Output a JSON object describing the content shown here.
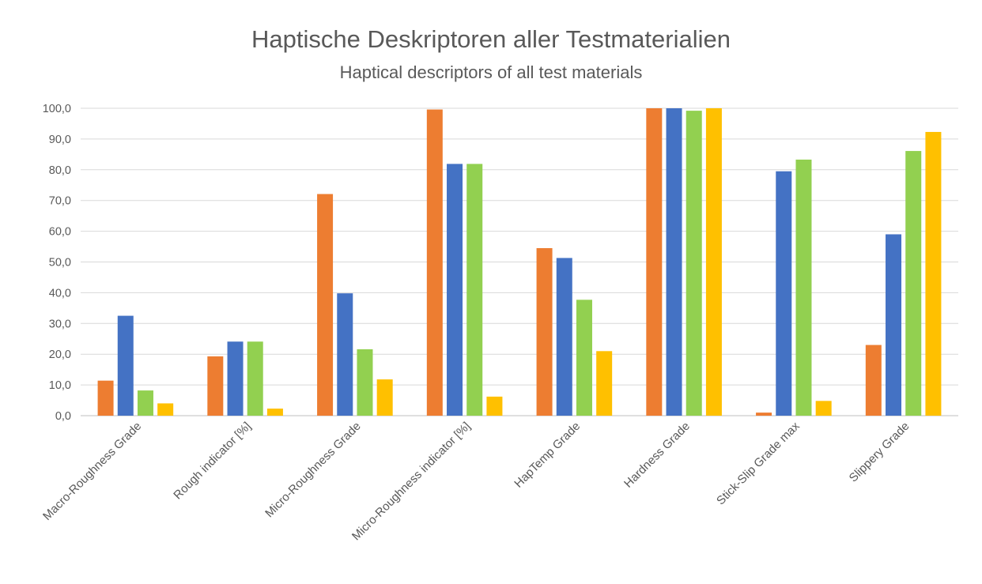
{
  "chart_data": {
    "type": "bar",
    "title": "Haptische Deskriptoren aller Testmaterialien",
    "subtitle": "Haptical descriptors of  all test materials",
    "xlabel": "",
    "ylabel": "",
    "ylim": [
      0,
      100
    ],
    "yticks": [
      "0,0",
      "10,0",
      "20,0",
      "30,0",
      "40,0",
      "50,0",
      "60,0",
      "70,0",
      "80,0",
      "90,0",
      "100,0"
    ],
    "grid": true,
    "legend": "none",
    "categories": [
      "Macro-Roughness Grade",
      "Rough  indicator [%]",
      "Micro-Roughness Grade",
      "Micro-Roughness  indicator [%]",
      "HapTemp Grade",
      "Hardness Grade",
      "Stick-Slip Grade max",
      "Slippery Grade"
    ],
    "series": [
      {
        "color": "#ED7D31",
        "values": [
          11.4,
          19.3,
          72.1,
          99.6,
          54.5,
          100.0,
          1.0,
          23.0
        ]
      },
      {
        "color": "#4472C4",
        "values": [
          32.5,
          24.1,
          39.8,
          81.9,
          51.3,
          100.0,
          79.5,
          59.0
        ]
      },
      {
        "color": "#92D050",
        "values": [
          8.2,
          24.1,
          21.6,
          81.9,
          37.7,
          99.2,
          83.3,
          86.1
        ]
      },
      {
        "color": "#FFC000",
        "values": [
          4.0,
          2.3,
          11.8,
          6.2,
          21.0,
          100.0,
          4.8,
          92.3
        ]
      }
    ]
  }
}
